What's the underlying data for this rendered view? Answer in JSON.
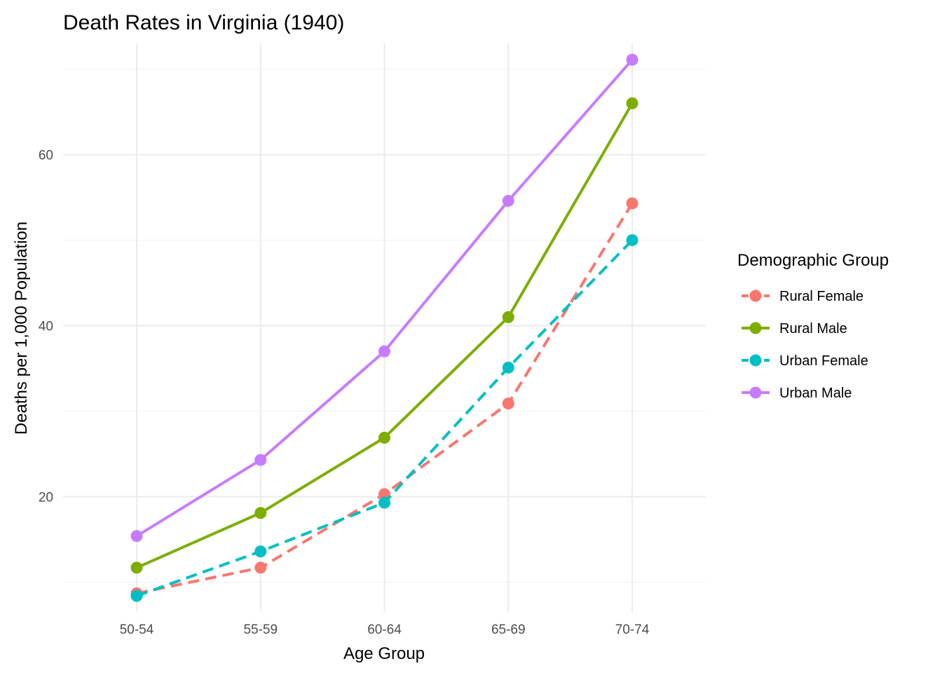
{
  "chart_data": {
    "type": "line",
    "title": "Death Rates in Virginia (1940)",
    "xlabel": "Age Group",
    "ylabel": "Deaths per 1,000 Population",
    "categories": [
      "50-54",
      "55-59",
      "60-64",
      "65-69",
      "70-74"
    ],
    "ylim": [
      6.6,
      73.0
    ],
    "y_ticks": [
      20,
      40,
      60
    ],
    "y_tick_labels": [
      "20",
      "40",
      "60"
    ],
    "grid": true,
    "legend": {
      "title": "Demographic Group",
      "position": "right"
    },
    "series": [
      {
        "name": "Rural Female",
        "values": [
          8.7,
          11.7,
          20.3,
          30.9,
          54.3
        ],
        "color": "#F8766D",
        "line_style": "dashed"
      },
      {
        "name": "Rural Male",
        "values": [
          11.7,
          18.1,
          26.9,
          41.0,
          66.0
        ],
        "color": "#7CAE00",
        "line_style": "solid"
      },
      {
        "name": "Urban Female",
        "values": [
          8.4,
          13.6,
          19.3,
          35.1,
          50.0
        ],
        "color": "#00BFC4",
        "line_style": "dashed"
      },
      {
        "name": "Urban Male",
        "values": [
          15.4,
          24.3,
          37.0,
          54.6,
          71.1
        ],
        "color": "#C77CFF",
        "line_style": "solid"
      }
    ]
  }
}
